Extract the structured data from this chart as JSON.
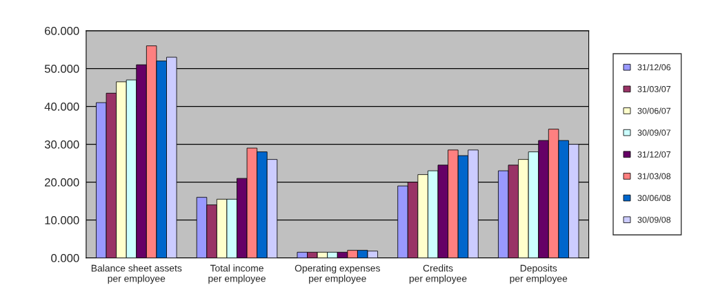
{
  "chart_data": {
    "type": "bar",
    "categories": [
      "Balance sheet assets\nper employee",
      "Total income\nper employee",
      "Operating expenses\nper employee",
      "Credits\nper employee",
      "Deposits\nper employee"
    ],
    "series": [
      {
        "name": "31/12/06",
        "color": "#9999ff",
        "values": [
          41.0,
          16.0,
          1.5,
          19.0,
          23.0
        ]
      },
      {
        "name": "31/03/07",
        "color": "#993366",
        "values": [
          43.5,
          14.0,
          1.5,
          20.0,
          24.5
        ]
      },
      {
        "name": "30/06/07",
        "color": "#ffffcc",
        "values": [
          46.5,
          15.5,
          1.5,
          22.0,
          26.0
        ]
      },
      {
        "name": "30/09/07",
        "color": "#ccffff",
        "values": [
          47.0,
          15.5,
          1.5,
          23.0,
          28.0
        ]
      },
      {
        "name": "31/12/07",
        "color": "#660066",
        "values": [
          51.0,
          21.0,
          1.5,
          24.5,
          31.0
        ]
      },
      {
        "name": "31/03/08",
        "color": "#ff8080",
        "values": [
          56.0,
          29.0,
          2.0,
          28.5,
          34.0
        ]
      },
      {
        "name": "30/06/08",
        "color": "#0066cc",
        "values": [
          52.0,
          28.0,
          2.0,
          27.0,
          31.0
        ]
      },
      {
        "name": "30/09/08",
        "color": "#ccccff",
        "values": [
          53.0,
          26.0,
          1.8,
          28.5,
          30.0
        ]
      }
    ],
    "ylim": [
      0,
      60
    ],
    "yticks": [
      {
        "value": 0,
        "label": "0.000"
      },
      {
        "value": 10,
        "label": "10.000"
      },
      {
        "value": 20,
        "label": "20.000"
      },
      {
        "value": 30,
        "label": "30.000"
      },
      {
        "value": 40,
        "label": "40.000"
      },
      {
        "value": 50,
        "label": "50.000"
      },
      {
        "value": 60,
        "label": "60.000"
      }
    ],
    "grid": "y",
    "legend": "right"
  }
}
